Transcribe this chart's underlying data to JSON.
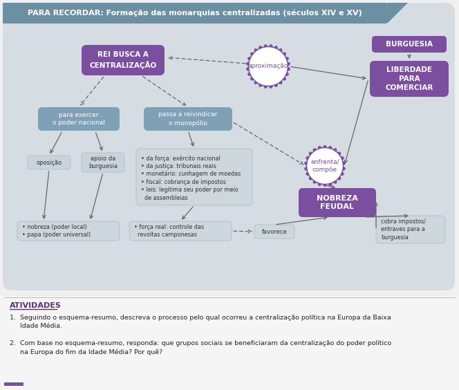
{
  "title": "PARA RECORDAR: Formação das monarquias centralizadas (séculos XIV e XV)",
  "title_bg": "#6b8fa3",
  "title_color": "#ffffff",
  "diagram_bg": "#d6dde2",
  "outer_bg": "#f0f0f0",
  "purple_dark": "#7b4ea0",
  "blue_box": "#7fa0b5",
  "gray_box": "#bfcdd5",
  "light_gray_box": "#d0d8dc",
  "activities_title": "ATIVIDADES",
  "activity1": "1.  Seguindo o esquema-resumo, descreva o processo pelo qual ocorreu a centralização política na Europa da Baixa\n     Idade Média.",
  "activity2": "2.  Com base no esquema-resumo, responda: que grupos sociais se beneficiaram da centralização do poder político\n     na Europa do fim da Idade Média? Por quê?",
  "nodes": {
    "rei": {
      "text": "REI BUSCA A\nCENTRALIZAÇÃO"
    },
    "burguesia": {
      "text": "BURGUESIA"
    },
    "liberdade": {
      "text": "LIBERDADE\nPARA\nCOMERCIAR"
    },
    "aproximacao": {
      "text": "aproximação"
    },
    "poder_nacional": {
      "text": "para exercer\no poder nacional"
    },
    "monopolio": {
      "text": "passa a reivindicar\no monopólio"
    },
    "oposicao": {
      "text": "oposição"
    },
    "apoio": {
      "text": "apoio da\nburguesia"
    },
    "lista_monopolio": {
      "text": "• da força: exército nacional\n• da justiça: tribunais reais\n• monetário: cunhagem de moedas\n• fiscal: cobrança de impostos\n• leis: legitima seu poder por meio\n  de assembleias"
    },
    "nobreza_oposicao": {
      "text": "• nobreza (poder local)\n• papa (poder universal)"
    },
    "forca_real": {
      "text": "• força real: controle das\n  revoltas camponesas"
    },
    "enfrenta": {
      "text": "enfrenta/\ncompõe"
    },
    "nobreza_feudal": {
      "text": "NOBREZA\nFEUDAL"
    },
    "favorece": {
      "text": "favorece"
    },
    "cobra_impostos": {
      "text": "cobra impostos/\nentraves para a\nburguesia"
    }
  }
}
